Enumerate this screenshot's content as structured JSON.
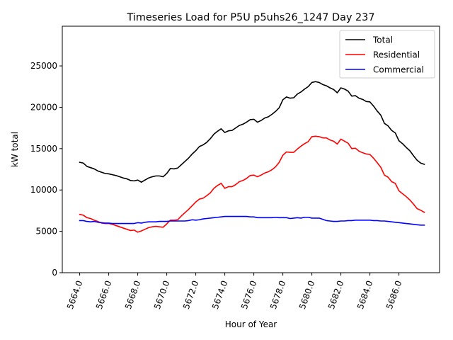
{
  "chart_data": {
    "type": "line",
    "title": "Timeseries Load for P5U p5uhs26_1247  Day 237",
    "xlabel": "Hour of Year",
    "ylabel": "kW total",
    "xlim": [
      5662.8,
      5688.8
    ],
    "ylim": [
      0,
      29800
    ],
    "xticks": [
      5664,
      5666,
      5668,
      5670,
      5672,
      5674,
      5676,
      5678,
      5680,
      5682,
      5684,
      5686
    ],
    "xtick_labels": [
      "5664.0",
      "5666.0",
      "5668.0",
      "5670.0",
      "5672.0",
      "5674.0",
      "5676.0",
      "5678.0",
      "5680.0",
      "5682.0",
      "5684.0",
      "5686.0"
    ],
    "yticks": [
      0,
      5000,
      10000,
      15000,
      20000,
      25000
    ],
    "ytick_labels": [
      "0",
      "5000",
      "10000",
      "15000",
      "20000",
      "25000"
    ],
    "grid": false,
    "legend_position": "top-right",
    "x": [
      5664.0,
      5664.25,
      5664.5,
      5664.75,
      5665.0,
      5665.25,
      5665.5,
      5665.75,
      5666.0,
      5666.25,
      5666.5,
      5666.75,
      5667.0,
      5667.25,
      5667.5,
      5667.75,
      5668.0,
      5668.25,
      5668.5,
      5668.75,
      5669.0,
      5669.25,
      5669.5,
      5669.75,
      5670.0,
      5670.25,
      5670.5,
      5670.75,
      5671.0,
      5671.25,
      5671.5,
      5671.75,
      5672.0,
      5672.25,
      5672.5,
      5672.75,
      5673.0,
      5673.25,
      5673.5,
      5673.75,
      5674.0,
      5674.25,
      5674.5,
      5674.75,
      5675.0,
      5675.25,
      5675.5,
      5675.75,
      5676.0,
      5676.25,
      5676.5,
      5676.75,
      5677.0,
      5677.25,
      5677.5,
      5677.75,
      5678.0,
      5678.25,
      5678.5,
      5678.75,
      5679.0,
      5679.25,
      5679.5,
      5679.75,
      5680.0,
      5680.25,
      5680.5,
      5680.75,
      5681.0,
      5681.25,
      5681.5,
      5681.75,
      5682.0,
      5682.25,
      5682.5,
      5682.75,
      5683.0,
      5683.25,
      5683.5,
      5683.75,
      5684.0,
      5684.25,
      5684.5,
      5684.75,
      5685.0,
      5685.25,
      5685.5,
      5685.75,
      5686.0,
      5686.25,
      5686.5,
      5686.75,
      5687.0,
      5687.25,
      5687.5,
      5687.75
    ],
    "series": [
      {
        "name": "Total",
        "color": "#000000",
        "values": [
          13350,
          13250,
          12850,
          12700,
          12550,
          12300,
          12150,
          12000,
          11950,
          11850,
          11750,
          11600,
          11450,
          11350,
          11150,
          11100,
          11200,
          10950,
          11200,
          11450,
          11600,
          11700,
          11700,
          11600,
          12000,
          12600,
          12550,
          12650,
          13050,
          13450,
          13850,
          14350,
          14750,
          15250,
          15450,
          15750,
          16200,
          16750,
          17100,
          17400,
          16950,
          17150,
          17200,
          17500,
          17800,
          17950,
          18200,
          18500,
          18550,
          18200,
          18400,
          18700,
          18850,
          19150,
          19500,
          19950,
          20900,
          21250,
          21100,
          21150,
          21600,
          21850,
          22200,
          22500,
          23000,
          23100,
          23000,
          22750,
          22600,
          22350,
          22150,
          21750,
          22350,
          22200,
          21950,
          21350,
          21400,
          21100,
          20950,
          20700,
          20650,
          20150,
          19550,
          19050,
          18050,
          17750,
          17200,
          16900,
          15950,
          15600,
          15150,
          14750,
          14150,
          13600,
          13250,
          13100
        ]
      },
      {
        "name": "Residential",
        "color": "#ff0000",
        "values": [
          7050,
          6950,
          6650,
          6550,
          6350,
          6200,
          6000,
          5950,
          5950,
          5850,
          5700,
          5550,
          5400,
          5250,
          5100,
          5150,
          4900,
          5050,
          5250,
          5450,
          5550,
          5600,
          5550,
          5500,
          5900,
          6350,
          6350,
          6400,
          6850,
          7250,
          7650,
          8100,
          8550,
          8900,
          9000,
          9300,
          9650,
          10200,
          10550,
          10800,
          10200,
          10400,
          10400,
          10650,
          11000,
          11150,
          11400,
          11750,
          11800,
          11600,
          11800,
          12050,
          12200,
          12450,
          12800,
          13350,
          14200,
          14600,
          14550,
          14550,
          14950,
          15300,
          15600,
          15850,
          16450,
          16500,
          16450,
          16300,
          16300,
          16050,
          15900,
          15550,
          16150,
          15900,
          15650,
          15000,
          15050,
          14700,
          14500,
          14350,
          14300,
          13850,
          13300,
          12750,
          11800,
          11550,
          11000,
          10800,
          9900,
          9550,
          9200,
          8800,
          8300,
          7750,
          7550,
          7300
        ]
      },
      {
        "name": "Commercial",
        "color": "#0000ff",
        "values": [
          6300,
          6300,
          6200,
          6150,
          6200,
          6100,
          6050,
          6000,
          6000,
          5950,
          5950,
          5950,
          5950,
          5950,
          5950,
          5950,
          6050,
          6000,
          6100,
          6150,
          6150,
          6150,
          6200,
          6200,
          6200,
          6250,
          6250,
          6250,
          6250,
          6250,
          6300,
          6400,
          6350,
          6400,
          6500,
          6550,
          6600,
          6650,
          6700,
          6750,
          6800,
          6800,
          6800,
          6800,
          6800,
          6800,
          6800,
          6750,
          6750,
          6650,
          6650,
          6650,
          6650,
          6650,
          6700,
          6650,
          6650,
          6650,
          6550,
          6600,
          6650,
          6600,
          6700,
          6700,
          6600,
          6600,
          6600,
          6450,
          6300,
          6250,
          6200,
          6200,
          6250,
          6250,
          6300,
          6300,
          6350,
          6350,
          6350,
          6350,
          6350,
          6300,
          6300,
          6250,
          6250,
          6200,
          6150,
          6100,
          6050,
          6000,
          5950,
          5900,
          5850,
          5800,
          5750,
          5750
        ]
      }
    ]
  }
}
